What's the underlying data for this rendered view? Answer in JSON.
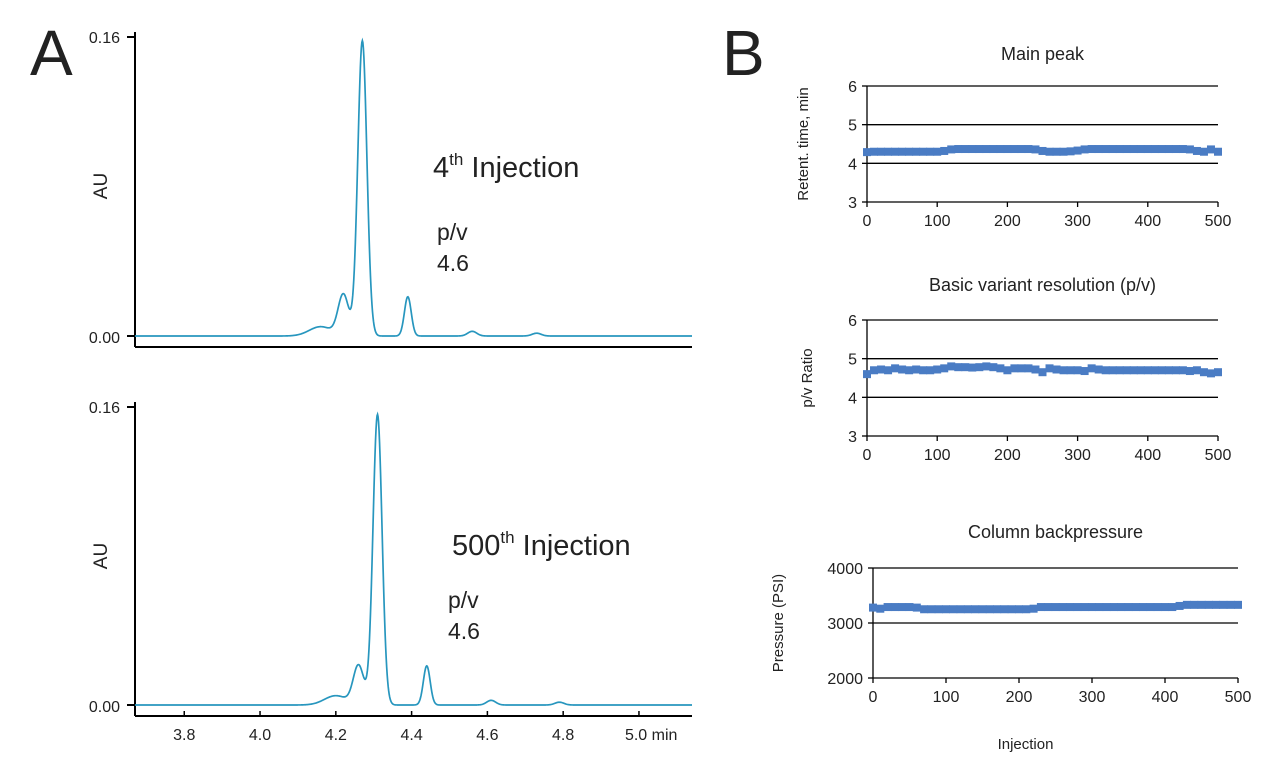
{
  "panels": {
    "A": {
      "letter": "A"
    },
    "B": {
      "letter": "B"
    }
  },
  "colors": {
    "trace": "#2796be",
    "annotation": "#8e1a5c",
    "marker": "#4a7cc4",
    "axis": "#000000"
  },
  "chart_data": [
    {
      "id": "chromatogram-4th",
      "type": "line",
      "title": "4th Injection",
      "title_base": "4",
      "title_sup": "th",
      "title_rest": " Injection",
      "annotation_label": "p/v",
      "annotation_value": "4.6",
      "ylabel": "AU",
      "xlabel": "",
      "y_ticks": [
        "0.00",
        "0.16"
      ],
      "ylim": [
        0,
        0.16
      ],
      "xlim": [
        3.67,
        5.14
      ],
      "peaks": [
        {
          "rt": 4.27,
          "height": 0.158,
          "width": 0.012
        },
        {
          "rt": 4.22,
          "height": 0.022,
          "width": 0.014
        },
        {
          "rt": 4.39,
          "height": 0.021,
          "width": 0.009
        },
        {
          "rt": 4.16,
          "height": 0.005,
          "width": 0.03
        },
        {
          "rt": 4.56,
          "height": 0.0025,
          "width": 0.012
        },
        {
          "rt": 4.73,
          "height": 0.0015,
          "width": 0.012
        }
      ]
    },
    {
      "id": "chromatogram-500th",
      "type": "line",
      "title": "500th Injection",
      "title_base": "500",
      "title_sup": "th",
      "title_rest": " Injection",
      "annotation_label": "p/v",
      "annotation_value": "4.6",
      "ylabel": "AU",
      "xlabel": "",
      "y_ticks": [
        "0.00",
        "0.16"
      ],
      "ylim": [
        0,
        0.16
      ],
      "xlim": [
        3.67,
        5.14
      ],
      "x_ticks": [
        {
          "value": 3.8,
          "label": "3.8"
        },
        {
          "value": 4.0,
          "label": "4.0"
        },
        {
          "value": 4.2,
          "label": "4.2"
        },
        {
          "value": 4.4,
          "label": "4.4"
        },
        {
          "value": 4.6,
          "label": "4.6"
        },
        {
          "value": 4.8,
          "label": "4.8"
        },
        {
          "value": 5.0,
          "label": "5.0 min"
        }
      ],
      "peaks": [
        {
          "rt": 4.31,
          "height": 0.156,
          "width": 0.012
        },
        {
          "rt": 4.26,
          "height": 0.021,
          "width": 0.014
        },
        {
          "rt": 4.44,
          "height": 0.021,
          "width": 0.009
        },
        {
          "rt": 4.2,
          "height": 0.005,
          "width": 0.03
        },
        {
          "rt": 4.61,
          "height": 0.0025,
          "width": 0.012
        },
        {
          "rt": 4.79,
          "height": 0.0015,
          "width": 0.012
        }
      ]
    },
    {
      "id": "main-peak",
      "type": "scatter",
      "title": "Main peak",
      "ylabel": "Retent. time, min",
      "xlabel": "",
      "xlim": [
        0,
        500
      ],
      "ylim": [
        3,
        6
      ],
      "x_ticks": [
        0,
        100,
        200,
        300,
        400,
        500
      ],
      "y_ticks": [
        3,
        4,
        5,
        6
      ],
      "gridlines": [
        4,
        5,
        6
      ],
      "points": [
        [
          0,
          4.29
        ],
        [
          10,
          4.3
        ],
        [
          20,
          4.3
        ],
        [
          30,
          4.3
        ],
        [
          40,
          4.3
        ],
        [
          50,
          4.3
        ],
        [
          60,
          4.3
        ],
        [
          70,
          4.3
        ],
        [
          80,
          4.3
        ],
        [
          90,
          4.3
        ],
        [
          100,
          4.3
        ],
        [
          110,
          4.32
        ],
        [
          120,
          4.36
        ],
        [
          130,
          4.37
        ],
        [
          140,
          4.37
        ],
        [
          150,
          4.37
        ],
        [
          160,
          4.37
        ],
        [
          170,
          4.37
        ],
        [
          180,
          4.37
        ],
        [
          190,
          4.37
        ],
        [
          200,
          4.37
        ],
        [
          210,
          4.37
        ],
        [
          220,
          4.37
        ],
        [
          230,
          4.37
        ],
        [
          240,
          4.36
        ],
        [
          250,
          4.32
        ],
        [
          260,
          4.3
        ],
        [
          270,
          4.3
        ],
        [
          280,
          4.3
        ],
        [
          290,
          4.31
        ],
        [
          300,
          4.33
        ],
        [
          310,
          4.36
        ],
        [
          320,
          4.37
        ],
        [
          330,
          4.37
        ],
        [
          340,
          4.37
        ],
        [
          350,
          4.37
        ],
        [
          360,
          4.37
        ],
        [
          370,
          4.37
        ],
        [
          380,
          4.37
        ],
        [
          390,
          4.37
        ],
        [
          400,
          4.37
        ],
        [
          410,
          4.37
        ],
        [
          420,
          4.37
        ],
        [
          430,
          4.37
        ],
        [
          440,
          4.37
        ],
        [
          450,
          4.37
        ],
        [
          460,
          4.36
        ],
        [
          470,
          4.32
        ],
        [
          480,
          4.3
        ],
        [
          490,
          4.36
        ],
        [
          500,
          4.3
        ]
      ]
    },
    {
      "id": "basic-variant-resolution",
      "type": "scatter",
      "title": "Basic variant resolution (p/v)",
      "ylabel": "p/v Ratio",
      "xlabel": "",
      "xlim": [
        0,
        500
      ],
      "ylim": [
        3,
        6
      ],
      "x_ticks": [
        0,
        100,
        200,
        300,
        400,
        500
      ],
      "y_ticks": [
        3,
        4,
        5,
        6
      ],
      "gridlines": [
        4,
        5,
        6
      ],
      "points": [
        [
          0,
          4.6
        ],
        [
          10,
          4.7
        ],
        [
          20,
          4.72
        ],
        [
          30,
          4.7
        ],
        [
          40,
          4.75
        ],
        [
          50,
          4.72
        ],
        [
          60,
          4.7
        ],
        [
          70,
          4.72
        ],
        [
          80,
          4.7
        ],
        [
          90,
          4.7
        ],
        [
          100,
          4.72
        ],
        [
          110,
          4.75
        ],
        [
          120,
          4.8
        ],
        [
          130,
          4.78
        ],
        [
          140,
          4.78
        ],
        [
          150,
          4.77
        ],
        [
          160,
          4.78
        ],
        [
          170,
          4.8
        ],
        [
          180,
          4.78
        ],
        [
          190,
          4.75
        ],
        [
          200,
          4.7
        ],
        [
          210,
          4.75
        ],
        [
          220,
          4.75
        ],
        [
          230,
          4.75
        ],
        [
          240,
          4.72
        ],
        [
          250,
          4.65
        ],
        [
          260,
          4.75
        ],
        [
          270,
          4.72
        ],
        [
          280,
          4.7
        ],
        [
          290,
          4.7
        ],
        [
          300,
          4.7
        ],
        [
          310,
          4.68
        ],
        [
          320,
          4.75
        ],
        [
          330,
          4.72
        ],
        [
          340,
          4.7
        ],
        [
          350,
          4.7
        ],
        [
          360,
          4.7
        ],
        [
          370,
          4.7
        ],
        [
          380,
          4.7
        ],
        [
          390,
          4.7
        ],
        [
          400,
          4.7
        ],
        [
          410,
          4.7
        ],
        [
          420,
          4.7
        ],
        [
          430,
          4.7
        ],
        [
          440,
          4.7
        ],
        [
          450,
          4.7
        ],
        [
          460,
          4.68
        ],
        [
          470,
          4.7
        ],
        [
          480,
          4.65
        ],
        [
          490,
          4.62
        ],
        [
          500,
          4.65
        ]
      ]
    },
    {
      "id": "column-backpressure",
      "type": "scatter",
      "title": "Column backpressure",
      "ylabel": "Pressure (PSI)",
      "xlabel": "Injection",
      "xlim": [
        0,
        500
      ],
      "ylim": [
        2000,
        4000
      ],
      "x_ticks": [
        0,
        100,
        200,
        300,
        400,
        500
      ],
      "y_ticks": [
        2000,
        3000,
        4000
      ],
      "gridlines": [
        3000,
        4000
      ],
      "points": [
        [
          0,
          3280
        ],
        [
          10,
          3260
        ],
        [
          20,
          3290
        ],
        [
          30,
          3290
        ],
        [
          40,
          3290
        ],
        [
          50,
          3290
        ],
        [
          60,
          3280
        ],
        [
          70,
          3250
        ],
        [
          80,
          3250
        ],
        [
          90,
          3250
        ],
        [
          100,
          3250
        ],
        [
          110,
          3250
        ],
        [
          120,
          3250
        ],
        [
          130,
          3250
        ],
        [
          140,
          3250
        ],
        [
          150,
          3250
        ],
        [
          160,
          3250
        ],
        [
          170,
          3250
        ],
        [
          180,
          3250
        ],
        [
          190,
          3250
        ],
        [
          200,
          3250
        ],
        [
          210,
          3250
        ],
        [
          220,
          3260
        ],
        [
          230,
          3290
        ],
        [
          240,
          3290
        ],
        [
          250,
          3290
        ],
        [
          260,
          3290
        ],
        [
          270,
          3290
        ],
        [
          280,
          3290
        ],
        [
          290,
          3290
        ],
        [
          300,
          3290
        ],
        [
          310,
          3290
        ],
        [
          320,
          3290
        ],
        [
          330,
          3290
        ],
        [
          340,
          3290
        ],
        [
          350,
          3290
        ],
        [
          360,
          3290
        ],
        [
          370,
          3290
        ],
        [
          380,
          3290
        ],
        [
          390,
          3290
        ],
        [
          400,
          3290
        ],
        [
          410,
          3290
        ],
        [
          420,
          3310
        ],
        [
          430,
          3330
        ],
        [
          440,
          3330
        ],
        [
          450,
          3330
        ],
        [
          460,
          3330
        ],
        [
          470,
          3330
        ],
        [
          480,
          3330
        ],
        [
          490,
          3330
        ],
        [
          500,
          3330
        ]
      ]
    }
  ]
}
